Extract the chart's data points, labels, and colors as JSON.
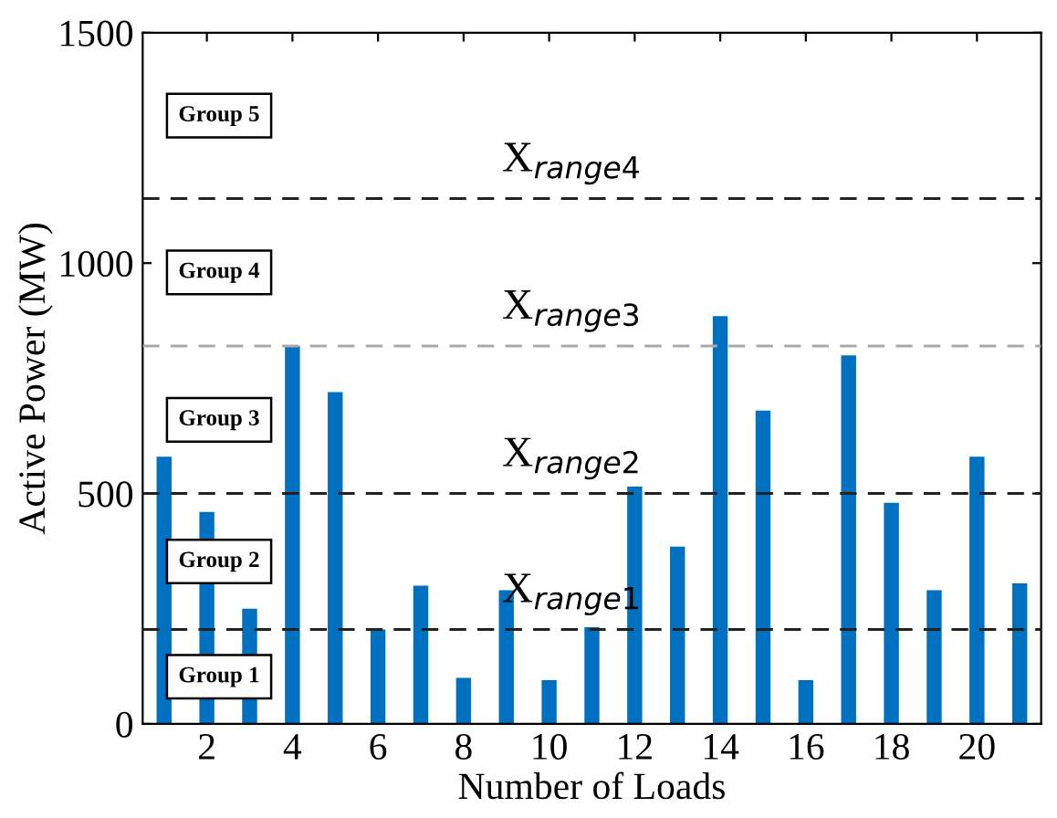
{
  "chart_data": {
    "type": "bar",
    "xlabel": "Number of Loads",
    "ylabel": "Active Power (MW)",
    "x": [
      1,
      2,
      3,
      4,
      5,
      6,
      7,
      8,
      9,
      10,
      11,
      12,
      13,
      14,
      15,
      16,
      17,
      18,
      19,
      20,
      21
    ],
    "values": [
      580,
      460,
      250,
      820,
      720,
      205,
      300,
      100,
      290,
      95,
      210,
      515,
      385,
      885,
      680,
      95,
      800,
      480,
      290,
      580,
      305
    ],
    "color": "#0070c0",
    "xlim": [
      0.5,
      21.5
    ],
    "xticks": [
      2,
      4,
      6,
      8,
      10,
      12,
      14,
      16,
      18,
      20
    ],
    "ylim": [
      0,
      1500
    ],
    "yticks": [
      0,
      500,
      1000,
      1500
    ],
    "grid": false,
    "ref_lines": [
      {
        "axis": "y",
        "value": 205,
        "label": "X$_{range1}$",
        "color": "#222222",
        "line_style": "dashed"
      },
      {
        "axis": "y",
        "value": 500,
        "label": "X$_{range2}$",
        "color": "#222222",
        "line_style": "dashed"
      },
      {
        "axis": "y",
        "value": 820,
        "label": "X$_{range3}$",
        "color": "#aaaaaa",
        "line_style": "dashed"
      },
      {
        "axis": "y",
        "value": 1140,
        "label": "X$_{range4}$",
        "color": "#222222",
        "line_style": "dashed"
      }
    ],
    "annotations": [
      "Group 1",
      "Group 2",
      "Group 3",
      "Group 4",
      "Group 5"
    ]
  }
}
